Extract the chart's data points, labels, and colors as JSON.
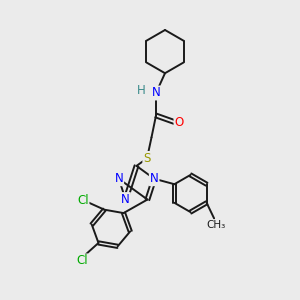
{
  "bg_color": "#ebebeb",
  "bond_color": "#1a1a1a",
  "N_color": "#0000ff",
  "O_color": "#ff0000",
  "S_color": "#999900",
  "Cl_color": "#00aa00",
  "H_color": "#3a8a8a",
  "line_width": 1.4,
  "font_size": 8.5,
  "fig_w": 3.0,
  "fig_h": 3.0,
  "dpi": 100,
  "xlim": [
    0,
    10
  ],
  "ylim": [
    0,
    10
  ]
}
